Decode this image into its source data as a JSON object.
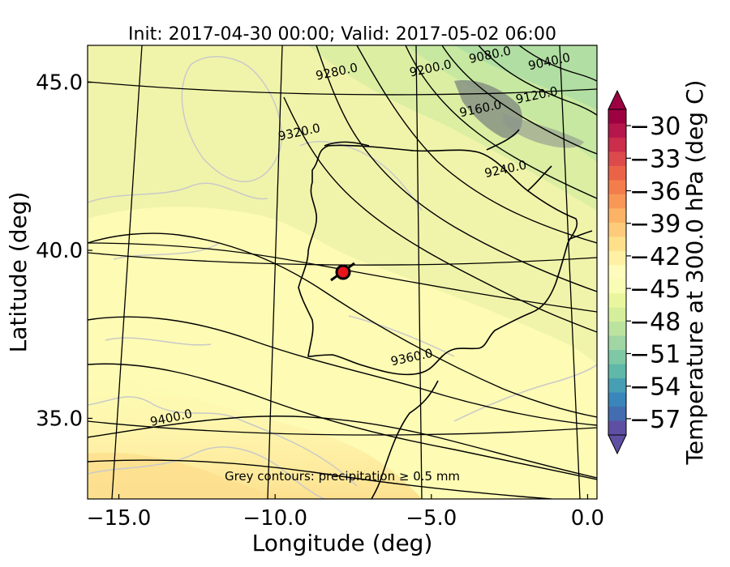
{
  "title": "Init: 2017-04-30 00:00; Valid: 2017-05-02 06:00",
  "x_axis": {
    "label": "Longitude (deg)",
    "range": [
      -16.0,
      0.3
    ],
    "ticks": [
      {
        "value": -15.0,
        "label": "−15.0"
      },
      {
        "value": -10.0,
        "label": "−10.0"
      },
      {
        "value": -5.0,
        "label": "−5.0"
      },
      {
        "value": 0.0,
        "label": "0.0"
      }
    ]
  },
  "y_axis": {
    "label": "Latitude (deg)",
    "range": [
      32.6,
      46.1
    ],
    "ticks": [
      {
        "value": 35.0,
        "label": "35.0"
      },
      {
        "value": 40.0,
        "label": "40.0"
      },
      {
        "value": 45.0,
        "label": "45.0"
      }
    ]
  },
  "colorbar": {
    "label": "Temperature at 300.0 hPa (deg C)",
    "min": -58.5,
    "max": -28.5,
    "ticks": [
      {
        "value": -30,
        "label": "−30"
      },
      {
        "value": -33,
        "label": "−33"
      },
      {
        "value": -36,
        "label": "−36"
      },
      {
        "value": -39,
        "label": "−39"
      },
      {
        "value": -42,
        "label": "−42"
      },
      {
        "value": -45,
        "label": "−45"
      },
      {
        "value": -48,
        "label": "−48"
      },
      {
        "value": -51,
        "label": "−51"
      },
      {
        "value": -54,
        "label": "−54"
      },
      {
        "value": -57,
        "label": "−57"
      }
    ],
    "colormap": "Spectral",
    "extend": "both"
  },
  "contour_labels": [
    {
      "text": "9040.0",
      "lon": -1.2,
      "lat": 45.5
    },
    {
      "text": "9080.0",
      "lon": -3.1,
      "lat": 45.7
    },
    {
      "text": "9120.0",
      "lon": -1.6,
      "lat": 44.5
    },
    {
      "text": "9160.0",
      "lon": -3.4,
      "lat": 44.1
    },
    {
      "text": "9200.0",
      "lon": -5.0,
      "lat": 45.3
    },
    {
      "text": "9240.0",
      "lon": -2.6,
      "lat": 42.3
    },
    {
      "text": "9280.0",
      "lon": -8.0,
      "lat": 45.2
    },
    {
      "text": "9320.0",
      "lon": -9.2,
      "lat": 43.4
    },
    {
      "text": "9360.0",
      "lon": -5.6,
      "lat": 36.7
    },
    {
      "text": "9400.0",
      "lon": -13.3,
      "lat": 34.9
    }
  ],
  "marker": {
    "lon": -7.7,
    "lat": 39.3,
    "color": "#e8141b"
  },
  "annotation": "Grey contours: precipitation ≥ 0.5 mm"
}
